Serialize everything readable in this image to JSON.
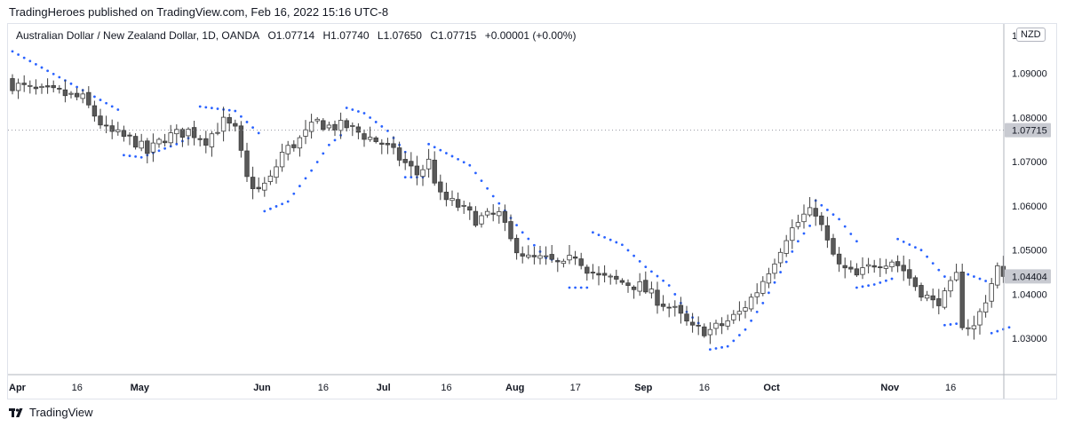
{
  "header": {
    "published_by": "TradingHeroes published on TradingView.com, Feb 16, 2022 15:16 UTC-8"
  },
  "legend": {
    "symbol": "Australian Dollar / New Zealand Dollar, 1D, OANDA",
    "open": "O1.07714",
    "high": "H1.07740",
    "low": "L1.07650",
    "close": "C1.07715",
    "change": "+0.00001 (+0.00%)"
  },
  "currency_badge": "NZD",
  "footer": {
    "brand": "TradingView"
  },
  "colors": {
    "candle_up_fill": "#ffffff",
    "candle_down_fill": "#595959",
    "candle_outline": "#3d3d3d",
    "sar": "#2962ff",
    "axis_text": "#131722",
    "grid_line": "#e0e3eb"
  },
  "chart_data": {
    "type": "candlestick",
    "y_axis_ticks": [
      "1.09000",
      "1.08000",
      "1.07000",
      "1.06000",
      "1.05000",
      "1.04000",
      "1.03000"
    ],
    "y_axis_top_partial": "1",
    "ylim": [
      1.0218,
      1.1012
    ],
    "x_axis_ticks": [
      {
        "label": "Apr",
        "i": 0,
        "bold": true
      },
      {
        "label": "16",
        "i": 11,
        "bold": false
      },
      {
        "label": "May",
        "i": 21,
        "bold": true
      },
      {
        "label": "Jun",
        "i": 42,
        "bold": true
      },
      {
        "label": "16",
        "i": 53,
        "bold": false
      },
      {
        "label": "Jul",
        "i": 63,
        "bold": true
      },
      {
        "label": "16",
        "i": 74,
        "bold": false
      },
      {
        "label": "Aug",
        "i": 85,
        "bold": true
      },
      {
        "label": "17",
        "i": 96,
        "bold": false
      },
      {
        "label": "Sep",
        "i": 107,
        "bold": true
      },
      {
        "label": "16",
        "i": 118,
        "bold": false
      },
      {
        "label": "Oct",
        "i": 129,
        "bold": true
      },
      {
        "label": "Nov",
        "i": 149,
        "bold": true
      },
      {
        "label": "16",
        "i": 160,
        "bold": false
      }
    ],
    "last_price": {
      "value": 1.07715,
      "label": "1.07715"
    },
    "current_price": {
      "value": 1.04404,
      "label": "1.04404"
    },
    "close_path": [
      [
        0,
        1.0875
      ],
      [
        4,
        1.086
      ],
      [
        8,
        1.0855
      ],
      [
        12,
        1.0842
      ],
      [
        16,
        1.077
      ],
      [
        18,
        1.076
      ],
      [
        21,
        1.0745
      ],
      [
        23,
        1.072
      ],
      [
        26,
        1.0755
      ],
      [
        30,
        1.077
      ],
      [
        33,
        1.075
      ],
      [
        36,
        1.079
      ],
      [
        38,
        1.077
      ],
      [
        40,
        1.066
      ],
      [
        42,
        1.0635
      ],
      [
        44,
        1.066
      ],
      [
        46,
        1.072
      ],
      [
        49,
        1.075
      ],
      [
        52,
        1.079
      ],
      [
        54,
        1.078
      ],
      [
        57,
        1.078
      ],
      [
        60,
        1.076
      ],
      [
        63,
        1.0742
      ],
      [
        66,
        1.0708
      ],
      [
        69,
        1.0672
      ],
      [
        71,
        1.07
      ],
      [
        73,
        1.062
      ],
      [
        76,
        1.06
      ],
      [
        79,
        1.057
      ],
      [
        83,
        1.058
      ],
      [
        85,
        1.052
      ],
      [
        88,
        1.048
      ],
      [
        91,
        1.0478
      ],
      [
        94,
        1.0462
      ],
      [
        96,
        1.049
      ],
      [
        98,
        1.046
      ],
      [
        100,
        1.0438
      ],
      [
        103,
        1.043
      ],
      [
        107,
        1.0418
      ],
      [
        110,
        1.0388
      ],
      [
        113,
        1.0362
      ],
      [
        116,
        1.032
      ],
      [
        119,
        1.0318
      ],
      [
        121,
        1.033
      ],
      [
        124,
        1.0358
      ],
      [
        127,
        1.0408
      ],
      [
        130,
        1.048
      ],
      [
        132,
        1.0532
      ],
      [
        135,
        1.0578
      ],
      [
        137,
        1.0588
      ],
      [
        139,
        1.0515
      ],
      [
        141,
        1.0462
      ],
      [
        144,
        1.044
      ],
      [
        147,
        1.047
      ],
      [
        150,
        1.0478
      ],
      [
        152,
        1.0455
      ],
      [
        154,
        1.042
      ],
      [
        157,
        1.038
      ],
      [
        159,
        1.0395
      ],
      [
        161,
        1.044
      ],
      [
        162,
        1.0335
      ],
      [
        164,
        1.0325
      ],
      [
        166,
        1.039
      ],
      [
        168,
        1.046
      ],
      [
        169,
        1.04404
      ]
    ],
    "sar_segments": [
      {
        "side": "above",
        "points": [
          [
            0,
            1.095
          ],
          [
            18,
            1.0818
          ]
        ]
      },
      {
        "side": "below",
        "points": [
          [
            19,
            1.0715
          ],
          [
            22,
            1.071
          ],
          [
            28,
            1.074
          ],
          [
            31,
            1.076
          ]
        ]
      },
      {
        "side": "above",
        "points": [
          [
            32,
            1.0825
          ],
          [
            38,
            1.0815
          ],
          [
            42,
            1.0765
          ]
        ]
      },
      {
        "side": "below",
        "points": [
          [
            43,
            1.0588
          ],
          [
            47,
            1.061
          ],
          [
            51,
            1.068
          ],
          [
            54,
            1.0738
          ],
          [
            56,
            1.076
          ]
        ]
      },
      {
        "side": "above",
        "points": [
          [
            57,
            1.0822
          ],
          [
            60,
            1.081
          ],
          [
            64,
            1.077
          ],
          [
            67,
            1.0722
          ]
        ]
      },
      {
        "side": "below",
        "points": [
          [
            67,
            1.0665
          ],
          [
            70,
            1.0665
          ]
        ]
      },
      {
        "side": "above",
        "points": [
          [
            71,
            1.074
          ],
          [
            78,
            1.0692
          ],
          [
            82,
            1.0622
          ],
          [
            87,
            1.054
          ],
          [
            91,
            1.0482
          ],
          [
            94,
            1.0472
          ]
        ]
      },
      {
        "side": "below",
        "points": [
          [
            95,
            1.0415
          ],
          [
            98,
            1.0415
          ]
        ]
      },
      {
        "side": "above",
        "points": [
          [
            99,
            1.054
          ],
          [
            104,
            1.0512
          ],
          [
            108,
            1.0462
          ],
          [
            112,
            1.042
          ],
          [
            115,
            1.036
          ],
          [
            118,
            1.0322
          ]
        ]
      },
      {
        "side": "below",
        "points": [
          [
            119,
            1.0275
          ],
          [
            122,
            1.0282
          ],
          [
            125,
            1.032
          ],
          [
            128,
            1.038
          ],
          [
            131,
            1.045
          ],
          [
            134,
            1.052
          ],
          [
            136,
            1.0555
          ]
        ]
      },
      {
        "side": "above",
        "points": [
          [
            137,
            1.0612
          ],
          [
            141,
            1.057
          ],
          [
            144,
            1.052
          ]
        ]
      },
      {
        "side": "below",
        "points": [
          [
            144,
            1.0415
          ],
          [
            147,
            1.0422
          ],
          [
            150,
            1.0435
          ]
        ]
      },
      {
        "side": "above",
        "points": [
          [
            151,
            1.0525
          ],
          [
            155,
            1.05
          ],
          [
            159,
            1.044
          ]
        ]
      },
      {
        "side": "below",
        "points": [
          [
            159,
            1.033
          ],
          [
            162,
            1.0335
          ]
        ]
      },
      {
        "side": "above",
        "points": [
          [
            163,
            1.0445
          ],
          [
            166,
            1.043
          ]
        ]
      },
      {
        "side": "below",
        "points": [
          [
            167,
            1.0312
          ],
          [
            170,
            1.0325
          ]
        ]
      }
    ]
  }
}
